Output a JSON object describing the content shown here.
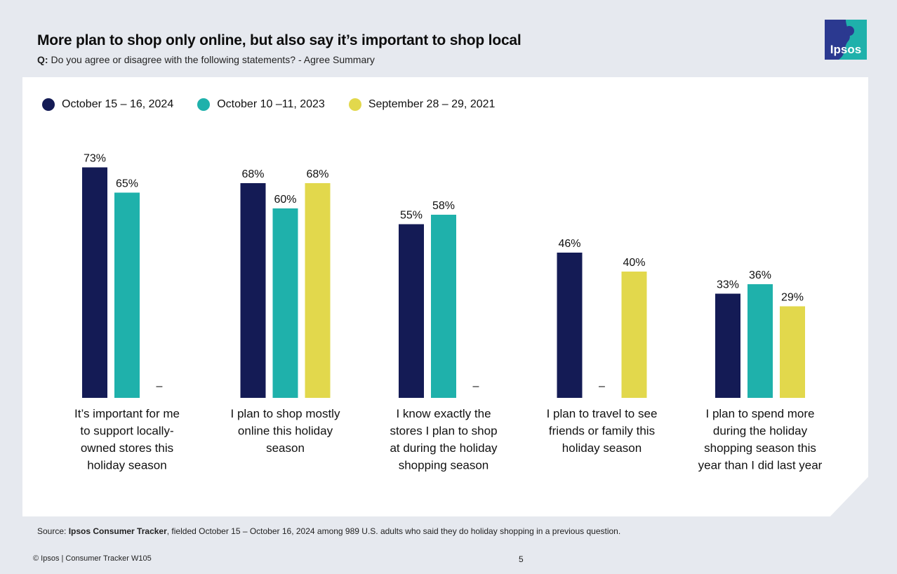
{
  "header": {
    "title": "More plan to shop only online, but also say it’s important to shop local",
    "question_prefix": "Q:",
    "question_text": " Do you agree or disagree with the following statements? - Agree Summary"
  },
  "logo": {
    "text": "Ipsos",
    "colors": [
      "#2b3990",
      "#1fb1ab"
    ]
  },
  "chart_data": {
    "type": "bar",
    "categories": [
      "It’s important for me to support locally-owned stores this holiday season",
      "I plan to shop mostly online this holiday season",
      "I know exactly the stores I plan to shop at during the holiday shopping season",
      "I plan to travel to see friends or family this holiday season",
      "I plan to spend more during the holiday shopping season this year than I did last year"
    ],
    "category_lines": [
      [
        "It’s important for me",
        "to support locally-",
        "owned stores this",
        "holiday season"
      ],
      [
        "I plan to shop mostly",
        "online this holiday",
        "season"
      ],
      [
        "I know exactly the",
        "stores I plan to shop",
        "at during the holiday",
        "shopping season"
      ],
      [
        "I plan to travel to see",
        "friends or family this",
        "holiday season"
      ],
      [
        "I plan to spend more",
        "during the holiday",
        "shopping season this",
        "year than I did last year"
      ]
    ],
    "series": [
      {
        "name": "October 15 – 16, 2024",
        "color": "#141b55",
        "values": [
          73,
          68,
          55,
          46,
          33
        ]
      },
      {
        "name": "October 10 –11, 2023",
        "color": "#1fb1ab",
        "values": [
          65,
          60,
          58,
          null,
          36
        ]
      },
      {
        "name": "September 28 – 29, 2021",
        "color": "#e2d84c",
        "values": [
          null,
          68,
          null,
          40,
          29
        ]
      }
    ],
    "missing_label": "–",
    "value_suffix": "%",
    "ylim": [
      0,
      100
    ],
    "grid": false,
    "legend_position": "top-left"
  },
  "footer": {
    "source_prefix": "Source: ",
    "source_bold": "Ipsos Consumer Tracker",
    "source_rest": ", fielded October 15 – October 16, 2024 among 989  U.S. adults who said they do holiday shopping in a previous question.",
    "copyright": "© Ipsos | Consumer Tracker W105",
    "page_number": "5"
  }
}
